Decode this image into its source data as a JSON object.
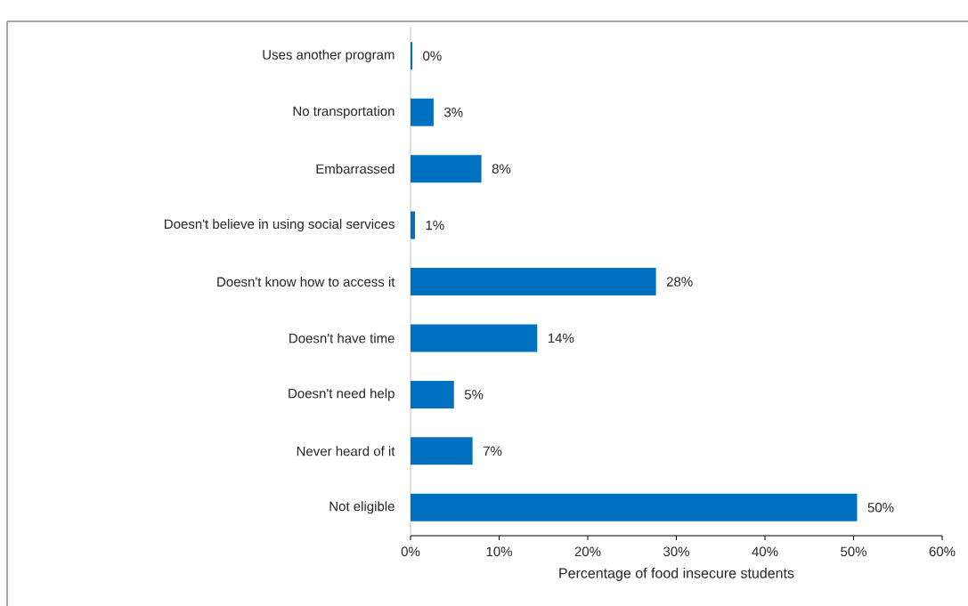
{
  "chart_data": {
    "type": "bar",
    "orientation": "horizontal",
    "xlabel": "Percentage of food insecure students",
    "categories": [
      "Uses another program",
      "No transportation",
      "Embarrassed",
      "Doesn't believe in using social services",
      "Doesn't know how to access it",
      "Doesn't have time",
      "Doesn't need help",
      "Never heard of it",
      "Not eligible"
    ],
    "values": [
      0.2,
      2.6,
      8.0,
      0.5,
      27.7,
      14.3,
      4.9,
      7.0,
      50.4
    ],
    "value_labels": [
      "0%",
      "3%",
      "8%",
      "1%",
      "28%",
      "14%",
      "5%",
      "7%",
      "50%"
    ],
    "color": "#0070c0",
    "xlim": [
      0,
      60
    ],
    "xticks": [
      {
        "value": 0,
        "label": "0%"
      },
      {
        "value": 10,
        "label": "10%"
      },
      {
        "value": 20,
        "label": "20%"
      },
      {
        "value": 30,
        "label": "30%"
      },
      {
        "value": 40,
        "label": "40%"
      },
      {
        "value": 50,
        "label": "50%"
      },
      {
        "value": 60,
        "label": "60%"
      }
    ],
    "grid": false
  }
}
